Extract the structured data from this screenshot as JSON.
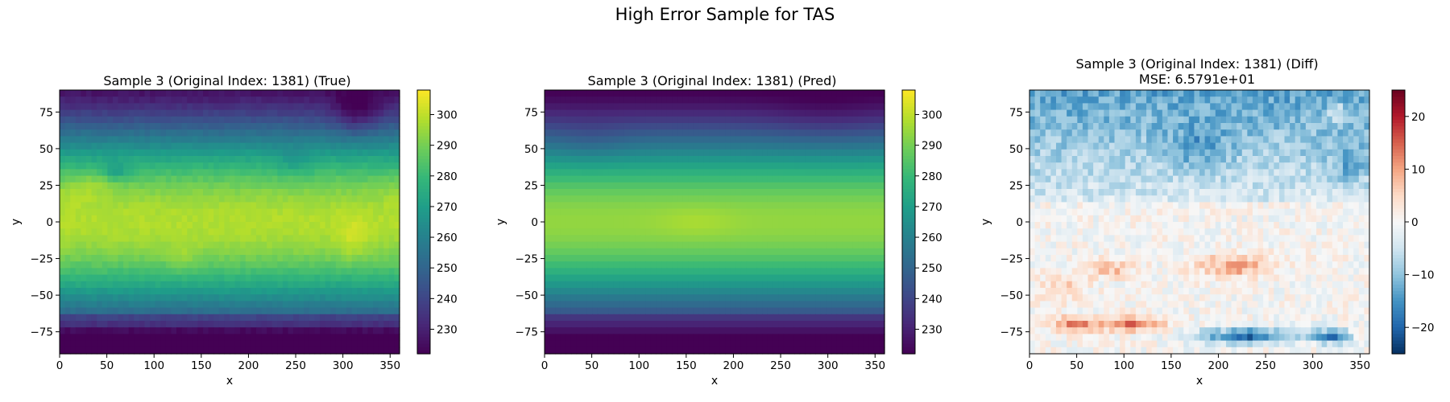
{
  "figure": {
    "suptitle": "High Error Sample for TAS"
  },
  "panels": [
    {
      "title": "Sample 3 (Original Index: 1381) (True)",
      "subtitle": "",
      "colormap": "viridis",
      "colorbar_ticks": [
        "230",
        "240",
        "250",
        "260",
        "270",
        "280",
        "290",
        "300"
      ]
    },
    {
      "title": "Sample 3 (Original Index: 1381) (Pred)",
      "subtitle": "",
      "colormap": "viridis",
      "colorbar_ticks": [
        "230",
        "240",
        "250",
        "260",
        "270",
        "280",
        "290",
        "300"
      ]
    },
    {
      "title": "Sample 3 (Original Index: 1381) (Diff)",
      "subtitle": "MSE: 6.5791e+01",
      "colormap": "RdBu_r",
      "colorbar_ticks": [
        "−20",
        "−10",
        "0",
        "10",
        "20"
      ]
    }
  ],
  "chart_data": [
    {
      "type": "heatmap",
      "title": "Sample 3 (Original Index: 1381) (True)",
      "xlabel": "x",
      "ylabel": "y",
      "xlim": [
        0,
        360
      ],
      "ylim": [
        -90,
        90
      ],
      "xticks": [
        0,
        50,
        100,
        150,
        200,
        250,
        300,
        350
      ],
      "yticks": [
        -75,
        -50,
        -25,
        0,
        25,
        50,
        75
      ],
      "colorbar_range": [
        222,
        308
      ],
      "colorbar_ticks": [
        230,
        240,
        250,
        260,
        270,
        280,
        290,
        300
      ],
      "colormap": "viridis",
      "field_description": "global near-surface air temperature; warm tropics (~295-300) with hot spots near Sahara/Arabia and Australia, cold Antarctica (~225), cold Greenland/Arctic (~250-260)"
    },
    {
      "type": "heatmap",
      "title": "Sample 3 (Original Index: 1381) (Pred)",
      "xlabel": "x",
      "ylabel": "y",
      "xlim": [
        0,
        360
      ],
      "ylim": [
        -90,
        90
      ],
      "xticks": [
        0,
        50,
        100,
        150,
        200,
        250,
        300,
        350
      ],
      "yticks": [
        -75,
        -50,
        -25,
        0,
        25,
        50,
        75
      ],
      "colorbar_range": [
        222,
        308
      ],
      "colorbar_ticks": [
        230,
        240,
        250,
        260,
        270,
        280,
        290,
        300
      ],
      "colormap": "viridis",
      "field_description": "smoother predicted temperature field; tropics ~290-298, colder northern latitudes (~255-265), uniformly cold south polar band (~222-228)"
    },
    {
      "type": "heatmap",
      "title": "Sample 3 (Original Index: 1381) (Diff)",
      "subtitle": "MSE: 6.5791e+01",
      "xlabel": "x",
      "ylabel": "y",
      "xlim": [
        0,
        360
      ],
      "ylim": [
        -90,
        90
      ],
      "xticks": [
        0,
        50,
        100,
        150,
        200,
        250,
        300,
        350
      ],
      "yticks": [
        -75,
        -50,
        -25,
        0,
        25,
        50,
        75
      ],
      "colorbar_range": [
        -25,
        25
      ],
      "colorbar_ticks": [
        -20,
        -10,
        0,
        10,
        20
      ],
      "colormap": "RdBu_r",
      "field_description": "difference field; strong negative (blue, ~-15 to -22) over northern high latitudes and near (200-330, -80); positive (red, ~+5 to +15) bands near y=-30 and y=-70"
    }
  ]
}
